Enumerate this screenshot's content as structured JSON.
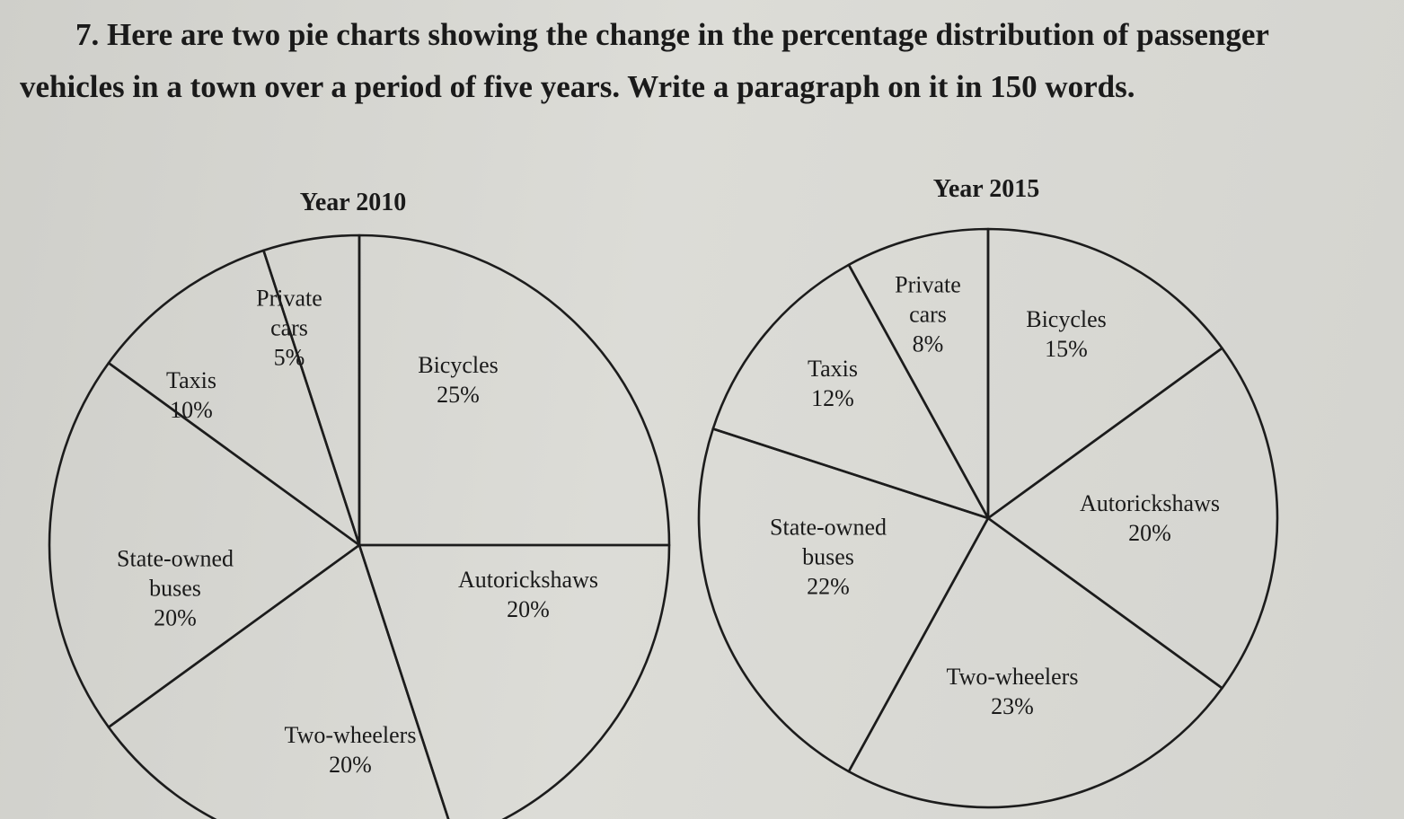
{
  "question": "7. Here are two pie charts showing the change in the percentage distribution of passenger vehicles in a town over a period of five years. Write a paragraph on it in 150 words.",
  "chart_data": [
    {
      "type": "pie",
      "title": "Year 2010",
      "categories": [
        "Bicycles",
        "Autorickshaws",
        "Two-wheelers",
        "State-owned buses",
        "Taxis",
        "Private cars"
      ],
      "values": [
        25,
        20,
        20,
        20,
        10,
        5
      ],
      "value_labels": [
        "25%",
        "20%",
        "20%",
        "20%",
        "10%",
        "5%"
      ]
    },
    {
      "type": "pie",
      "title": "Year 2015",
      "categories": [
        "Bicycles",
        "Autorickshaws",
        "Two-wheelers",
        "State-owned buses",
        "Taxis",
        "Private cars"
      ],
      "values": [
        15,
        20,
        23,
        22,
        12,
        8
      ],
      "value_labels": [
        "15%",
        "20%",
        "23%",
        "22%",
        "12%",
        "8%"
      ]
    }
  ]
}
